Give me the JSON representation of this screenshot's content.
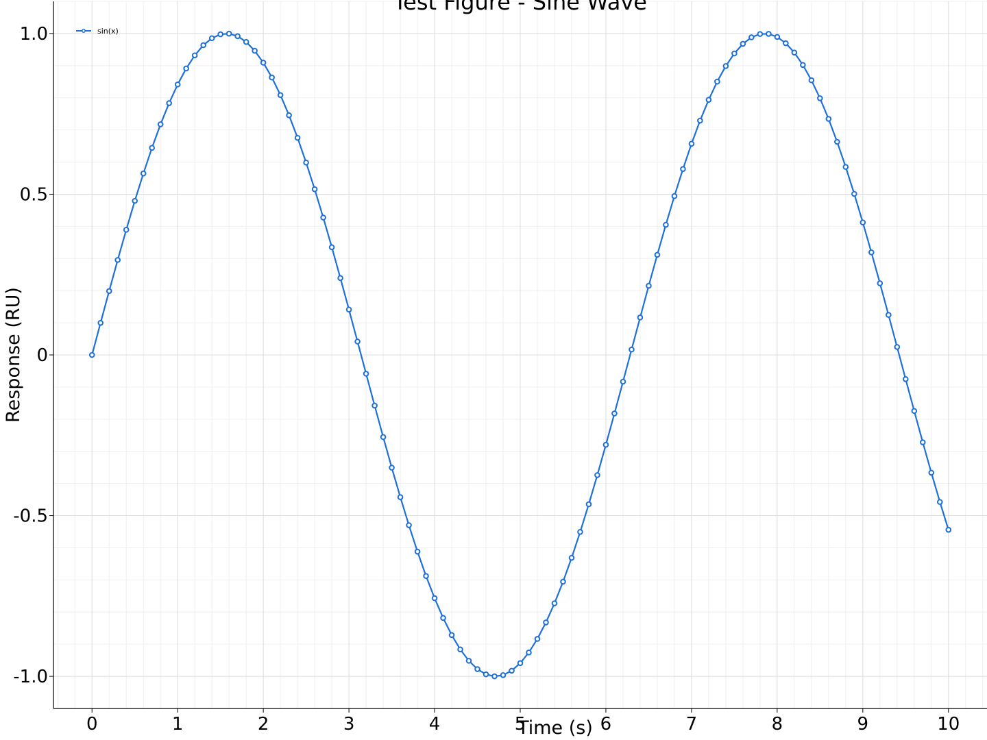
{
  "chart_data": {
    "type": "line",
    "title": "Test Figure - Sine Wave",
    "xlabel": "Time (s)",
    "ylabel": "Response (RU)",
    "xlim": [
      -0.45,
      10.45
    ],
    "ylim": [
      -1.1,
      1.1
    ],
    "xticks": [
      0,
      1,
      2,
      3,
      4,
      5,
      6,
      7,
      8,
      9,
      10
    ],
    "xtick_labels": [
      "0",
      "1",
      "2",
      "3",
      "4",
      "5",
      "6",
      "7",
      "8",
      "9",
      "10"
    ],
    "yticks": [
      1.0,
      0.5,
      0,
      -0.5,
      -1.0
    ],
    "ytick_labels": [
      "1.0",
      "0.5",
      "0",
      "-0.5",
      "-1.0"
    ],
    "grid": true,
    "minor_grid": true,
    "legend_position": "top-left",
    "series": [
      {
        "name": "sin(x)",
        "color": "#1f6fd9",
        "marker": "circle",
        "x": [
          0.0,
          0.1,
          0.2,
          0.3,
          0.4,
          0.5,
          0.6,
          0.7,
          0.8,
          0.9,
          1.0,
          1.1,
          1.2,
          1.3,
          1.4,
          1.5,
          1.6,
          1.7,
          1.8,
          1.9,
          2.0,
          2.1,
          2.2,
          2.3,
          2.4,
          2.5,
          2.6,
          2.7,
          2.8,
          2.9,
          3.0,
          3.1,
          3.2,
          3.3,
          3.4,
          3.5,
          3.6,
          3.7,
          3.8,
          3.9,
          4.0,
          4.1,
          4.2,
          4.3,
          4.4,
          4.5,
          4.6,
          4.7,
          4.8,
          4.9,
          5.0,
          5.1,
          5.2,
          5.3,
          5.4,
          5.5,
          5.6,
          5.7,
          5.8,
          5.9,
          6.0,
          6.1,
          6.2,
          6.3,
          6.4,
          6.5,
          6.6,
          6.7,
          6.8,
          6.9,
          7.0,
          7.1,
          7.2,
          7.3,
          7.4,
          7.5,
          7.6,
          7.7,
          7.8,
          7.9,
          8.0,
          8.1,
          8.2,
          8.3,
          8.4,
          8.5,
          8.6,
          8.7,
          8.8,
          8.9,
          9.0,
          9.1,
          9.2,
          9.3,
          9.4,
          9.5,
          9.6,
          9.7,
          9.8,
          9.9,
          10.0
        ],
        "y": [
          0.0,
          0.0998,
          0.1987,
          0.2955,
          0.3894,
          0.4794,
          0.5646,
          0.6442,
          0.7174,
          0.7833,
          0.8415,
          0.8912,
          0.932,
          0.9636,
          0.9854,
          0.9975,
          0.9996,
          0.9917,
          0.9738,
          0.9463,
          0.9093,
          0.8632,
          0.8085,
          0.7457,
          0.6755,
          0.5985,
          0.5155,
          0.4274,
          0.335,
          0.2392,
          0.1411,
          0.0416,
          -0.0584,
          -0.1577,
          -0.2555,
          -0.3508,
          -0.4425,
          -0.5298,
          -0.6119,
          -0.6878,
          -0.7568,
          -0.8183,
          -0.8716,
          -0.9162,
          -0.9516,
          -0.9775,
          -0.9937,
          -0.9999,
          -0.9962,
          -0.9825,
          -0.9589,
          -0.9258,
          -0.8835,
          -0.8323,
          -0.7728,
          -0.7055,
          -0.6313,
          -0.5507,
          -0.4646,
          -0.3739,
          -0.2794,
          -0.1822,
          -0.0831,
          0.0168,
          0.1165,
          0.2151,
          0.3115,
          0.4048,
          0.4941,
          0.5784,
          0.657,
          0.729,
          0.7937,
          0.8504,
          0.8987,
          0.938,
          0.9679,
          0.9882,
          0.9985,
          0.9989,
          0.9894,
          0.9699,
          0.9407,
          0.9022,
          0.8546,
          0.7985,
          0.7344,
          0.663,
          0.5849,
          0.501,
          0.4121,
          0.3191,
          0.2229,
          0.1245,
          0.0248,
          -0.0752,
          -0.1743,
          -0.2718,
          -0.3665,
          -0.4575,
          -0.544
        ]
      }
    ]
  }
}
